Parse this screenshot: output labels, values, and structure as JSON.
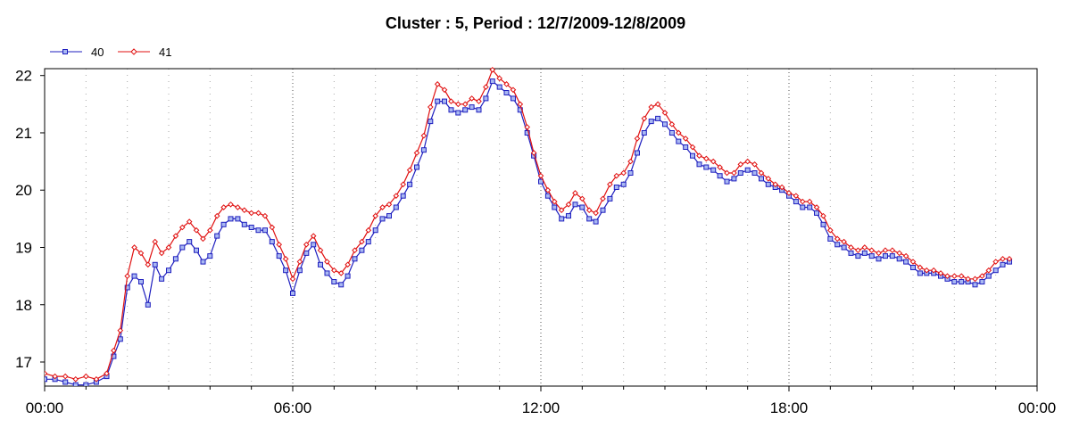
{
  "chart_data": {
    "type": "line",
    "title": "Cluster : 5, Period : 12/7/2009-12/8/2009",
    "xlabel": "",
    "ylabel": "",
    "x_tick_labels": [
      "00:00",
      "06:00",
      "12:00",
      "18:00",
      "00:00"
    ],
    "y_tick_labels": [
      "17",
      "18",
      "19",
      "20",
      "21",
      "22"
    ],
    "xlim_hours": [
      0,
      24
    ],
    "ylim": [
      16.58,
      22.12
    ],
    "grid": true,
    "legend_position": "top-left",
    "series": [
      {
        "name": "40",
        "color": "#1f1fbf",
        "fill": "#a9b8f2",
        "marker": "square",
        "points": [
          [
            0,
            16.7
          ],
          [
            0.25,
            16.7
          ],
          [
            0.5,
            16.65
          ],
          [
            0.75,
            16.6
          ],
          [
            1,
            16.6
          ],
          [
            1.25,
            16.65
          ],
          [
            1.5,
            16.75
          ],
          [
            1.67,
            17.1
          ],
          [
            1.83,
            17.4
          ],
          [
            2,
            18.3
          ],
          [
            2.17,
            18.5
          ],
          [
            2.33,
            18.4
          ],
          [
            2.5,
            18.0
          ],
          [
            2.67,
            18.7
          ],
          [
            2.83,
            18.45
          ],
          [
            3,
            18.6
          ],
          [
            3.17,
            18.8
          ],
          [
            3.33,
            19.0
          ],
          [
            3.5,
            19.1
          ],
          [
            3.67,
            18.95
          ],
          [
            3.83,
            18.75
          ],
          [
            4,
            18.85
          ],
          [
            4.17,
            19.2
          ],
          [
            4.33,
            19.4
          ],
          [
            4.5,
            19.5
          ],
          [
            4.67,
            19.5
          ],
          [
            4.83,
            19.4
          ],
          [
            5,
            19.35
          ],
          [
            5.17,
            19.3
          ],
          [
            5.33,
            19.3
          ],
          [
            5.5,
            19.1
          ],
          [
            5.67,
            18.85
          ],
          [
            5.83,
            18.6
          ],
          [
            6,
            18.2
          ],
          [
            6.17,
            18.6
          ],
          [
            6.33,
            18.9
          ],
          [
            6.5,
            19.05
          ],
          [
            6.67,
            18.7
          ],
          [
            6.83,
            18.55
          ],
          [
            7,
            18.4
          ],
          [
            7.17,
            18.35
          ],
          [
            7.33,
            18.5
          ],
          [
            7.5,
            18.8
          ],
          [
            7.67,
            18.95
          ],
          [
            7.83,
            19.1
          ],
          [
            8,
            19.3
          ],
          [
            8.17,
            19.5
          ],
          [
            8.33,
            19.55
          ],
          [
            8.5,
            19.7
          ],
          [
            8.67,
            19.9
          ],
          [
            8.83,
            20.1
          ],
          [
            9,
            20.4
          ],
          [
            9.17,
            20.7
          ],
          [
            9.33,
            21.2
          ],
          [
            9.5,
            21.55
          ],
          [
            9.67,
            21.55
          ],
          [
            9.83,
            21.4
          ],
          [
            10,
            21.35
          ],
          [
            10.17,
            21.4
          ],
          [
            10.33,
            21.45
          ],
          [
            10.5,
            21.4
          ],
          [
            10.67,
            21.6
          ],
          [
            10.83,
            21.9
          ],
          [
            11,
            21.8
          ],
          [
            11.17,
            21.7
          ],
          [
            11.33,
            21.6
          ],
          [
            11.5,
            21.4
          ],
          [
            11.67,
            21.0
          ],
          [
            11.83,
            20.6
          ],
          [
            12,
            20.15
          ],
          [
            12.17,
            19.9
          ],
          [
            12.33,
            19.7
          ],
          [
            12.5,
            19.5
          ],
          [
            12.67,
            19.55
          ],
          [
            12.83,
            19.75
          ],
          [
            13,
            19.7
          ],
          [
            13.17,
            19.5
          ],
          [
            13.33,
            19.45
          ],
          [
            13.5,
            19.65
          ],
          [
            13.67,
            19.85
          ],
          [
            13.83,
            20.05
          ],
          [
            14,
            20.1
          ],
          [
            14.17,
            20.3
          ],
          [
            14.33,
            20.65
          ],
          [
            14.5,
            21.0
          ],
          [
            14.67,
            21.2
          ],
          [
            14.83,
            21.25
          ],
          [
            15,
            21.15
          ],
          [
            15.17,
            21.0
          ],
          [
            15.33,
            20.85
          ],
          [
            15.5,
            20.75
          ],
          [
            15.67,
            20.6
          ],
          [
            15.83,
            20.45
          ],
          [
            16,
            20.4
          ],
          [
            16.17,
            20.35
          ],
          [
            16.33,
            20.25
          ],
          [
            16.5,
            20.15
          ],
          [
            16.67,
            20.2
          ],
          [
            16.83,
            20.3
          ],
          [
            17,
            20.35
          ],
          [
            17.17,
            20.3
          ],
          [
            17.33,
            20.2
          ],
          [
            17.5,
            20.1
          ],
          [
            17.67,
            20.05
          ],
          [
            17.83,
            20.0
          ],
          [
            18,
            19.9
          ],
          [
            18.17,
            19.8
          ],
          [
            18.33,
            19.7
          ],
          [
            18.5,
            19.7
          ],
          [
            18.67,
            19.6
          ],
          [
            18.83,
            19.4
          ],
          [
            19,
            19.15
          ],
          [
            19.17,
            19.05
          ],
          [
            19.33,
            19.0
          ],
          [
            19.5,
            18.9
          ],
          [
            19.67,
            18.85
          ],
          [
            19.83,
            18.9
          ],
          [
            20,
            18.85
          ],
          [
            20.17,
            18.8
          ],
          [
            20.33,
            18.85
          ],
          [
            20.5,
            18.85
          ],
          [
            20.67,
            18.8
          ],
          [
            20.83,
            18.75
          ],
          [
            21,
            18.65
          ],
          [
            21.17,
            18.55
          ],
          [
            21.33,
            18.55
          ],
          [
            21.5,
            18.55
          ],
          [
            21.67,
            18.5
          ],
          [
            21.83,
            18.45
          ],
          [
            22,
            18.4
          ],
          [
            22.17,
            18.4
          ],
          [
            22.33,
            18.4
          ],
          [
            22.5,
            18.35
          ],
          [
            22.67,
            18.4
          ],
          [
            22.83,
            18.5
          ],
          [
            23,
            18.6
          ],
          [
            23.17,
            18.7
          ],
          [
            23.33,
            18.75
          ]
        ]
      },
      {
        "name": "41",
        "color": "#e01010",
        "fill": "#ffffff",
        "marker": "diamond",
        "points": [
          [
            0,
            16.8
          ],
          [
            0.25,
            16.75
          ],
          [
            0.5,
            16.75
          ],
          [
            0.75,
            16.7
          ],
          [
            1,
            16.75
          ],
          [
            1.25,
            16.7
          ],
          [
            1.5,
            16.8
          ],
          [
            1.67,
            17.2
          ],
          [
            1.83,
            17.55
          ],
          [
            2,
            18.5
          ],
          [
            2.17,
            19.0
          ],
          [
            2.33,
            18.9
          ],
          [
            2.5,
            18.7
          ],
          [
            2.67,
            19.1
          ],
          [
            2.83,
            18.9
          ],
          [
            3,
            19.0
          ],
          [
            3.17,
            19.2
          ],
          [
            3.33,
            19.35
          ],
          [
            3.5,
            19.45
          ],
          [
            3.67,
            19.3
          ],
          [
            3.83,
            19.15
          ],
          [
            4,
            19.3
          ],
          [
            4.17,
            19.55
          ],
          [
            4.33,
            19.7
          ],
          [
            4.5,
            19.75
          ],
          [
            4.67,
            19.7
          ],
          [
            4.83,
            19.65
          ],
          [
            5,
            19.6
          ],
          [
            5.17,
            19.6
          ],
          [
            5.33,
            19.55
          ],
          [
            5.5,
            19.35
          ],
          [
            5.67,
            19.05
          ],
          [
            5.83,
            18.8
          ],
          [
            6,
            18.45
          ],
          [
            6.17,
            18.75
          ],
          [
            6.33,
            19.05
          ],
          [
            6.5,
            19.2
          ],
          [
            6.67,
            18.95
          ],
          [
            6.83,
            18.75
          ],
          [
            7,
            18.6
          ],
          [
            7.17,
            18.55
          ],
          [
            7.33,
            18.7
          ],
          [
            7.5,
            18.95
          ],
          [
            7.67,
            19.1
          ],
          [
            7.83,
            19.3
          ],
          [
            8,
            19.55
          ],
          [
            8.17,
            19.7
          ],
          [
            8.33,
            19.75
          ],
          [
            8.5,
            19.9
          ],
          [
            8.67,
            20.1
          ],
          [
            8.83,
            20.35
          ],
          [
            9,
            20.65
          ],
          [
            9.17,
            20.95
          ],
          [
            9.33,
            21.45
          ],
          [
            9.5,
            21.85
          ],
          [
            9.67,
            21.75
          ],
          [
            9.83,
            21.55
          ],
          [
            10,
            21.5
          ],
          [
            10.17,
            21.5
          ],
          [
            10.33,
            21.6
          ],
          [
            10.5,
            21.55
          ],
          [
            10.67,
            21.8
          ],
          [
            10.83,
            22.1
          ],
          [
            11,
            21.95
          ],
          [
            11.17,
            21.85
          ],
          [
            11.33,
            21.75
          ],
          [
            11.5,
            21.5
          ],
          [
            11.67,
            21.1
          ],
          [
            11.83,
            20.65
          ],
          [
            12,
            20.25
          ],
          [
            12.17,
            20.0
          ],
          [
            12.33,
            19.8
          ],
          [
            12.5,
            19.65
          ],
          [
            12.67,
            19.75
          ],
          [
            12.83,
            19.95
          ],
          [
            13,
            19.85
          ],
          [
            13.17,
            19.65
          ],
          [
            13.33,
            19.6
          ],
          [
            13.5,
            19.85
          ],
          [
            13.67,
            20.1
          ],
          [
            13.83,
            20.25
          ],
          [
            14,
            20.3
          ],
          [
            14.17,
            20.5
          ],
          [
            14.33,
            20.9
          ],
          [
            14.5,
            21.25
          ],
          [
            14.67,
            21.45
          ],
          [
            14.83,
            21.5
          ],
          [
            15,
            21.35
          ],
          [
            15.17,
            21.15
          ],
          [
            15.33,
            21.0
          ],
          [
            15.5,
            20.9
          ],
          [
            15.67,
            20.75
          ],
          [
            15.83,
            20.6
          ],
          [
            16,
            20.55
          ],
          [
            16.17,
            20.5
          ],
          [
            16.33,
            20.4
          ],
          [
            16.5,
            20.3
          ],
          [
            16.67,
            20.3
          ],
          [
            16.83,
            20.45
          ],
          [
            17,
            20.5
          ],
          [
            17.17,
            20.45
          ],
          [
            17.33,
            20.3
          ],
          [
            17.5,
            20.2
          ],
          [
            17.67,
            20.1
          ],
          [
            17.83,
            20.05
          ],
          [
            18,
            19.95
          ],
          [
            18.17,
            19.9
          ],
          [
            18.33,
            19.8
          ],
          [
            18.5,
            19.8
          ],
          [
            18.67,
            19.7
          ],
          [
            18.83,
            19.55
          ],
          [
            19,
            19.3
          ],
          [
            19.17,
            19.15
          ],
          [
            19.33,
            19.1
          ],
          [
            19.5,
            19.0
          ],
          [
            19.67,
            18.95
          ],
          [
            19.83,
            19.0
          ],
          [
            20,
            18.95
          ],
          [
            20.17,
            18.9
          ],
          [
            20.33,
            18.95
          ],
          [
            20.5,
            18.95
          ],
          [
            20.67,
            18.9
          ],
          [
            20.83,
            18.85
          ],
          [
            21,
            18.75
          ],
          [
            21.17,
            18.65
          ],
          [
            21.33,
            18.6
          ],
          [
            21.5,
            18.6
          ],
          [
            21.67,
            18.55
          ],
          [
            21.83,
            18.5
          ],
          [
            22,
            18.5
          ],
          [
            22.17,
            18.5
          ],
          [
            22.33,
            18.45
          ],
          [
            22.5,
            18.45
          ],
          [
            22.67,
            18.5
          ],
          [
            22.83,
            18.6
          ],
          [
            23,
            18.75
          ],
          [
            23.17,
            18.8
          ],
          [
            23.33,
            18.8
          ]
        ]
      }
    ]
  }
}
